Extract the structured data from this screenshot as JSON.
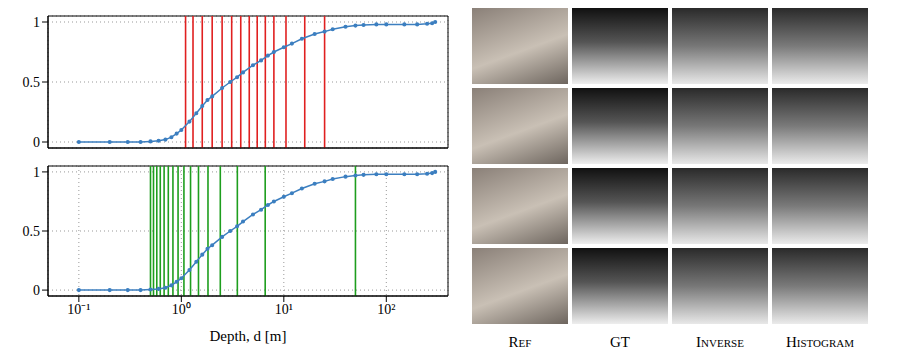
{
  "chart_data": [
    {
      "type": "line",
      "x": [
        0.1,
        0.2,
        0.3,
        0.4,
        0.5,
        0.6,
        0.7,
        0.8,
        0.9,
        1.0,
        1.2,
        1.4,
        1.6,
        1.8,
        2.0,
        2.5,
        3.0,
        3.5,
        4,
        5,
        6,
        7,
        8,
        10,
        12,
        15,
        20,
        25,
        30,
        40,
        50,
        60,
        80,
        100,
        150,
        200,
        250,
        280,
        300
      ],
      "values": [
        0,
        0,
        0,
        0,
        0.005,
        0.01,
        0.02,
        0.04,
        0.07,
        0.1,
        0.17,
        0.24,
        0.3,
        0.35,
        0.38,
        0.45,
        0.5,
        0.54,
        0.58,
        0.64,
        0.68,
        0.72,
        0.75,
        0.79,
        0.82,
        0.86,
        0.9,
        0.92,
        0.94,
        0.96,
        0.97,
        0.975,
        0.98,
        0.98,
        0.98,
        0.98,
        0.985,
        0.99,
        1.0
      ],
      "color": "#3c7fc0",
      "marker": "circle",
      "log": "x",
      "xlim": [
        0.05,
        400
      ],
      "ylim": [
        -0.05,
        1.05
      ],
      "xticks": [
        {
          "value": 0.1,
          "label": "10⁻¹"
        },
        {
          "value": 1,
          "label": "10⁰"
        },
        {
          "value": 10,
          "label": "10¹"
        },
        {
          "value": 100,
          "label": "10²"
        }
      ],
      "yticks": [
        0,
        0.5,
        1
      ],
      "grid": true,
      "tick_labels": "y",
      "vertical_lines": {
        "x": [
          1.1,
          1.3,
          1.6,
          2.0,
          2.5,
          3.1,
          3.8,
          4.6,
          5.5,
          6.6,
          8.0,
          10.5,
          16,
          25
        ],
        "color": "#e02020"
      }
    },
    {
      "type": "line",
      "x": [
        0.1,
        0.2,
        0.3,
        0.4,
        0.5,
        0.6,
        0.7,
        0.8,
        0.9,
        1.0,
        1.2,
        1.4,
        1.6,
        1.8,
        2.0,
        2.5,
        3.0,
        3.5,
        4,
        5,
        6,
        7,
        8,
        10,
        12,
        15,
        20,
        25,
        30,
        40,
        50,
        60,
        80,
        100,
        150,
        200,
        250,
        280,
        300
      ],
      "values": [
        0,
        0,
        0,
        0,
        0.005,
        0.01,
        0.02,
        0.04,
        0.07,
        0.1,
        0.17,
        0.24,
        0.3,
        0.35,
        0.38,
        0.45,
        0.5,
        0.54,
        0.58,
        0.64,
        0.68,
        0.72,
        0.75,
        0.79,
        0.82,
        0.86,
        0.9,
        0.92,
        0.94,
        0.96,
        0.97,
        0.975,
        0.98,
        0.98,
        0.98,
        0.98,
        0.985,
        0.99,
        1.0
      ],
      "color": "#3c7fc0",
      "marker": "circle",
      "log": "x",
      "xlim": [
        0.05,
        400
      ],
      "ylim": [
        -0.05,
        1.05
      ],
      "xticks": [
        {
          "value": 0.1,
          "label": "10⁻¹"
        },
        {
          "value": 1,
          "label": "10⁰"
        },
        {
          "value": 10,
          "label": "10¹"
        },
        {
          "value": 100,
          "label": "10²"
        }
      ],
      "yticks": [
        0,
        0.5,
        1
      ],
      "grid": true,
      "tick_labels": true,
      "x_label": "Depth, d [m]",
      "vertical_lines": {
        "x": [
          0.5,
          0.535,
          0.576,
          0.623,
          0.679,
          0.746,
          0.828,
          0.929,
          1.06,
          1.23,
          1.47,
          1.82,
          2.4,
          3.52,
          6.58,
          50
        ],
        "color": "#1e9e1e"
      }
    }
  ],
  "image_grid": {
    "rows": 4,
    "columns": [
      "Ref",
      "GT",
      "Inverse",
      "Histogram"
    ]
  }
}
